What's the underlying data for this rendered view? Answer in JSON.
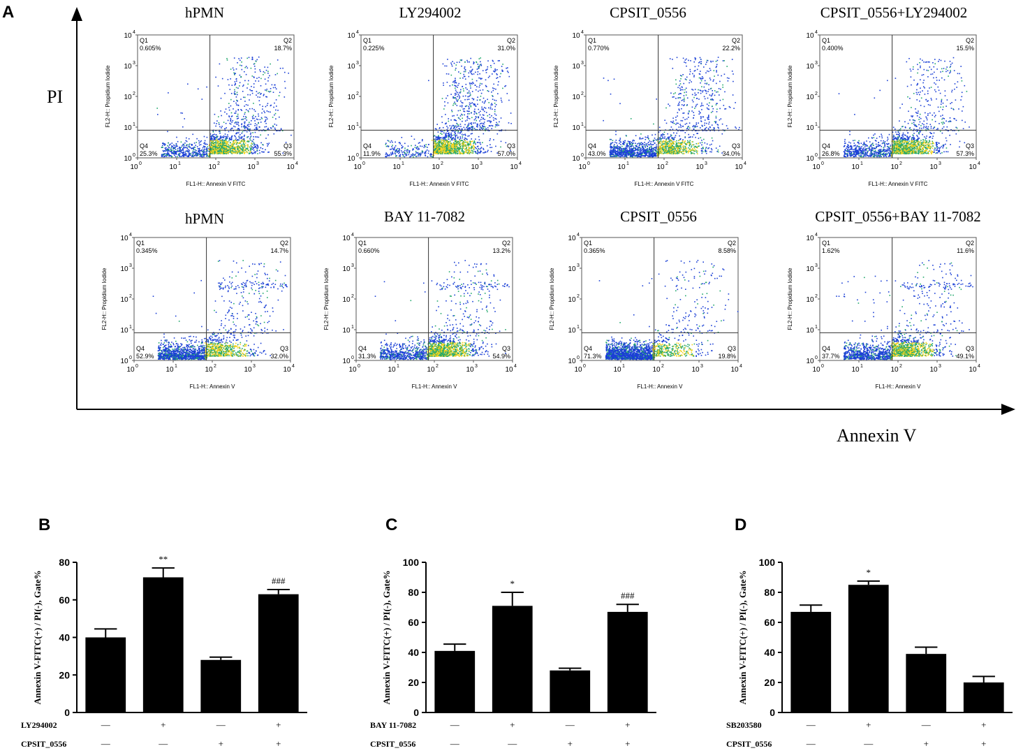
{
  "panel_labels": {
    "a": "A",
    "b": "B",
    "c": "C",
    "d": "D"
  },
  "panel_a": {
    "y_axis_label": "PI",
    "x_axis_label": "Annexin V",
    "row1_titles": [
      "hPMN",
      "LY294002",
      "CPSIT_0556",
      "CPSIT_0556+LY294002"
    ],
    "row2_titles": [
      "hPMN",
      "BAY 11-7082",
      "CPSIT_0556",
      "CPSIT_0556+BAY 11-7082"
    ],
    "flow_ylabel": "FL2-H:: Propidium Iodide",
    "flow_xlabel_row1": "FL1-H:: Annexin V FITC",
    "flow_xlabel_row2": "FL1-H:: Annexin V",
    "quadrant_names": [
      "Q1",
      "Q2",
      "Q3",
      "Q4"
    ],
    "decade_ticks": [
      "10",
      "10",
      "10",
      "10",
      "10"
    ],
    "decade_exps": [
      "0",
      "1",
      "2",
      "3",
      "4"
    ],
    "colors": {
      "low": "#1a3fd6",
      "mid": "#21a86b",
      "high": "#f2d21b",
      "line": "#333333"
    }
  },
  "chart_data": [
    {
      "type": "scatter",
      "title": "hPMN",
      "xlabel": "FL1-H:: Annexin V FITC",
      "ylabel": "FL2-H:: Propidium Iodide",
      "xlim": [
        1,
        10000
      ],
      "ylim": [
        1,
        10000
      ],
      "scale": "log",
      "quadrants": {
        "Q1": "0.605%",
        "Q2": "18.7%",
        "Q3": "55.3%",
        "Q4": "25.3%"
      }
    },
    {
      "type": "scatter",
      "title": "LY294002",
      "xlabel": "FL1-H:: Annexin V FITC",
      "ylabel": "FL2-H:: Propidium Iodide",
      "xlim": [
        1,
        10000
      ],
      "ylim": [
        1,
        10000
      ],
      "scale": "log",
      "quadrants": {
        "Q1": "0.225%",
        "Q2": "31.0%",
        "Q3": "57.0%",
        "Q4": "11.9%"
      }
    },
    {
      "type": "scatter",
      "title": "CPSIT_0556",
      "xlabel": "FL1-H:: Annexin V FITC",
      "ylabel": "FL2-H:: Propidium Iodide",
      "xlim": [
        1,
        10000
      ],
      "ylim": [
        1,
        10000
      ],
      "scale": "log",
      "quadrants": {
        "Q1": "0.770%",
        "Q2": "22.2%",
        "Q3": "34.0%",
        "Q4": "43.0%"
      }
    },
    {
      "type": "scatter",
      "title": "CPSIT_0556+LY294002",
      "xlabel": "FL1-H:: Annexin V FITC",
      "ylabel": "FL2-H:: Propidium Iodide",
      "xlim": [
        1,
        10000
      ],
      "ylim": [
        1,
        10000
      ],
      "scale": "log",
      "quadrants": {
        "Q1": "0.400%",
        "Q2": "15.5%",
        "Q3": "57.3%",
        "Q4": "26.8%"
      }
    },
    {
      "type": "scatter",
      "title": "hPMN",
      "xlabel": "FL1-H:: Annexin V",
      "ylabel": "FL2-H:: Propidium Iodide",
      "xlim": [
        1,
        10000
      ],
      "ylim": [
        1,
        10000
      ],
      "scale": "log",
      "quadrants": {
        "Q1": "0.345%",
        "Q2": "14.7%",
        "Q3": "32.0%",
        "Q4": "52.9%"
      }
    },
    {
      "type": "scatter",
      "title": "BAY 11-7082",
      "xlabel": "FL1-H:: Annexin V",
      "ylabel": "FL2-H:: Propidium Iodide",
      "xlim": [
        1,
        10000
      ],
      "ylim": [
        1,
        10000
      ],
      "scale": "log",
      "quadrants": {
        "Q1": "0.660%",
        "Q2": "13.2%",
        "Q3": "54.9%",
        "Q4": "31.3%"
      }
    },
    {
      "type": "scatter",
      "title": "CPSIT_0556",
      "xlabel": "FL1-H:: Annexin V",
      "ylabel": "FL2-H:: Propidium Iodide",
      "xlim": [
        1,
        10000
      ],
      "ylim": [
        1,
        10000
      ],
      "scale": "log",
      "quadrants": {
        "Q1": "0.365%",
        "Q2": "8.58%",
        "Q3": "19.8%",
        "Q4": "71.3%"
      }
    },
    {
      "type": "scatter",
      "title": "CPSIT_0556+BAY 11-7082",
      "xlabel": "FL1-H:: Annexin V",
      "ylabel": "FL2-H:: Propidium Iodide",
      "xlim": [
        1,
        10000
      ],
      "ylim": [
        1,
        10000
      ],
      "scale": "log",
      "quadrants": {
        "Q1": "1.62%",
        "Q2": "11.6%",
        "Q3": "49.1%",
        "Q4": "37.7%"
      }
    },
    {
      "type": "bar",
      "panel": "B",
      "ylabel": "Annexin V-FITC(+) / PI(-), Gate%",
      "ylim": [
        0,
        80
      ],
      "yticks": [
        "0",
        "20",
        "40",
        "60",
        "80"
      ],
      "values": [
        40,
        72,
        28,
        63
      ],
      "errors": [
        4.5,
        5,
        1.5,
        2.5
      ],
      "annotations": [
        "",
        "**",
        "",
        "###"
      ],
      "treatments": [
        {
          "name": "LY294002",
          "signs": [
            "—",
            "+",
            "—",
            "+"
          ]
        },
        {
          "name": "CPSIT_0556",
          "signs": [
            "—",
            "—",
            "+",
            "+"
          ]
        }
      ]
    },
    {
      "type": "bar",
      "panel": "C",
      "ylabel": "Annexin V-FITC(+) / PI(-), Gate%",
      "ylim": [
        0,
        100
      ],
      "yticks": [
        "0",
        "20",
        "40",
        "60",
        "80",
        "100"
      ],
      "values": [
        41,
        71,
        28,
        67
      ],
      "errors": [
        4.5,
        9,
        1.5,
        5
      ],
      "annotations": [
        "",
        "*",
        "",
        "###"
      ],
      "treatments": [
        {
          "name": "BAY 11-7082",
          "signs": [
            "—",
            "+",
            "—",
            "+"
          ]
        },
        {
          "name": "CPSIT_0556",
          "signs": [
            "—",
            "—",
            "+",
            "+"
          ]
        }
      ]
    },
    {
      "type": "bar",
      "panel": "D",
      "ylabel": "Annexin V-FITC(+) / PI(-), Gate%",
      "ylim": [
        0,
        100
      ],
      "yticks": [
        "0",
        "20",
        "40",
        "60",
        "80",
        "100"
      ],
      "values": [
        67,
        85,
        39,
        20
      ],
      "errors": [
        4.5,
        2.5,
        4.5,
        4
      ],
      "annotations": [
        "",
        "*",
        "",
        ""
      ],
      "treatments": [
        {
          "name": "SB203580",
          "signs": [
            "—",
            "+",
            "—",
            "+"
          ]
        },
        {
          "name": "CPSIT_0556",
          "signs": [
            "—",
            "—",
            "+",
            "+"
          ]
        }
      ]
    }
  ]
}
